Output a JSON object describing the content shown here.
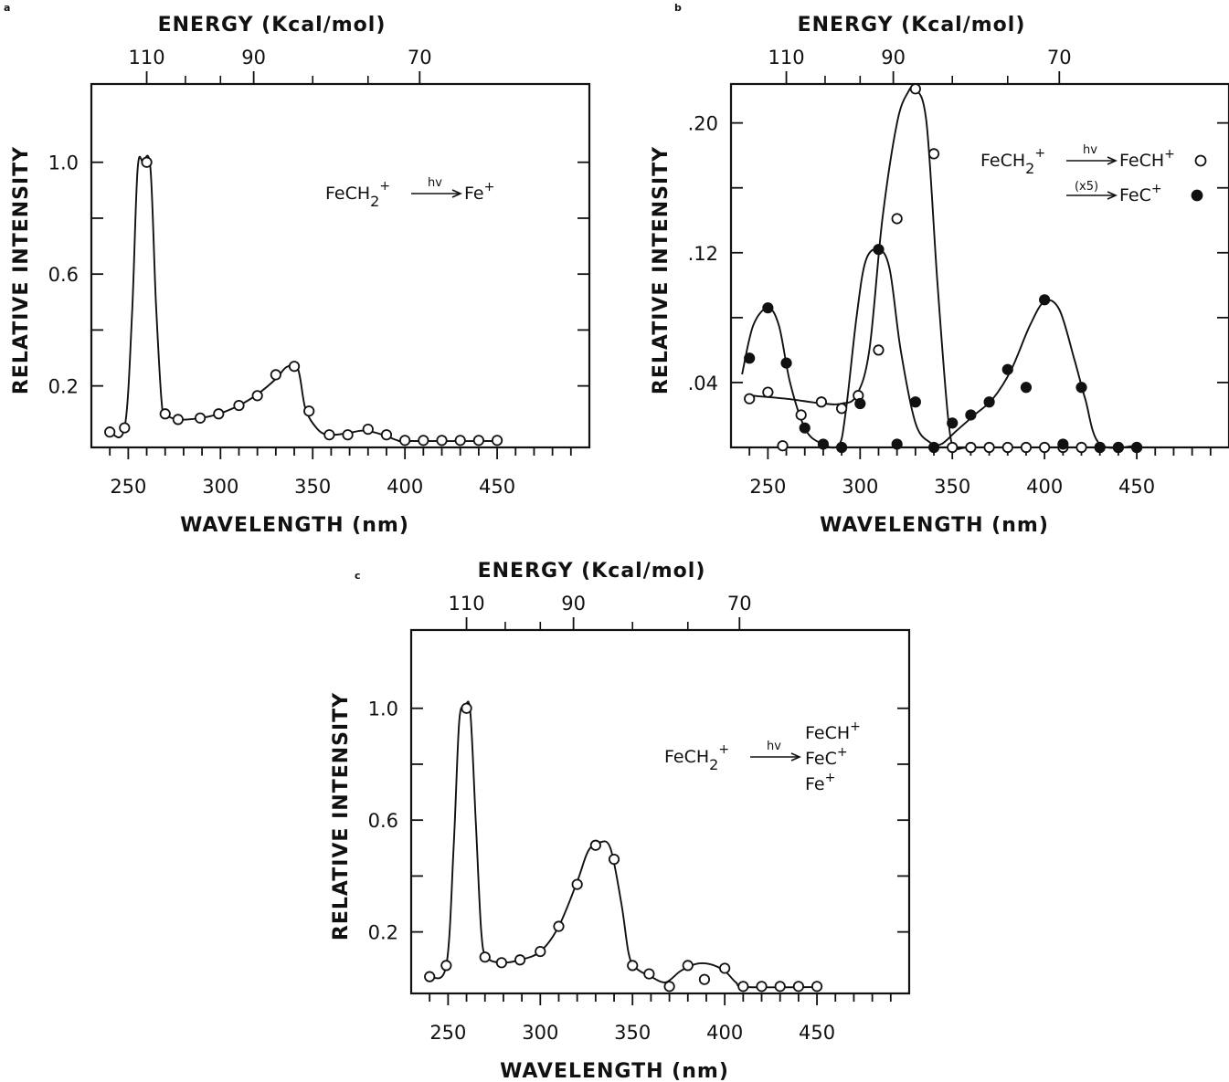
{
  "chart_data": [
    {
      "panel": "a",
      "type": "scatter",
      "top_axis_title": "ENERGY (Kcal/mol)",
      "top_tick_labels": [
        "110",
        "90",
        "70"
      ],
      "top_tick_wavelengths": [
        260,
        318,
        408
      ],
      "xlabel": "WAVELENGTH (nm)",
      "ylabel": "RELATIVE INTENSITY",
      "xlim": [
        230,
        500
      ],
      "ylim": [
        -0.02,
        1.28
      ],
      "x_tick_labels": [
        "250",
        "300",
        "350",
        "400",
        "450"
      ],
      "x_tick_values": [
        250,
        300,
        350,
        400,
        450
      ],
      "y_tick_labels": [
        "0.2",
        "0.6",
        "1.0"
      ],
      "y_tick_values": [
        0.2,
        0.6,
        1.0
      ],
      "y_minor_ticks": [
        0.4,
        0.8
      ],
      "grid": false,
      "annotation": {
        "reactant": "FeCH",
        "reactant_sub": "2",
        "reactant_sup": "+",
        "arrow_label": "hv",
        "products": [
          {
            "base": "Fe",
            "sup": "+"
          }
        ]
      },
      "series": [
        {
          "marker": "open",
          "x": [
            240,
            248,
            260,
            270,
            277,
            289,
            299,
            310,
            320,
            330,
            340,
            348,
            359,
            369,
            380,
            390,
            400,
            410,
            420,
            430,
            440,
            450
          ],
          "y": [
            0.035,
            0.05,
            1.0,
            0.1,
            0.08,
            0.085,
            0.1,
            0.13,
            0.165,
            0.24,
            0.27,
            0.11,
            0.025,
            0.025,
            0.045,
            0.025,
            0.005,
            0.005,
            0.005,
            0.005,
            0.005,
            0.005
          ]
        }
      ],
      "curves": [
        {
          "x": [
            240,
            248,
            252,
            255,
            258,
            262,
            265,
            268,
            270,
            277,
            289,
            299,
            310,
            320,
            330,
            336,
            342,
            346,
            352,
            358,
            368,
            378,
            388,
            396,
            402,
            450
          ],
          "y": [
            0.035,
            0.05,
            0.45,
            0.97,
            1.0,
            0.98,
            0.5,
            0.15,
            0.1,
            0.08,
            0.085,
            0.1,
            0.13,
            0.17,
            0.225,
            0.268,
            0.26,
            0.12,
            0.05,
            0.025,
            0.03,
            0.04,
            0.025,
            0.005,
            0.003,
            0.003
          ]
        }
      ]
    },
    {
      "panel": "b",
      "type": "scatter",
      "top_axis_title": "ENERGY (Kcal/mol)",
      "top_tick_labels": [
        "110",
        "90",
        "70"
      ],
      "top_tick_wavelengths": [
        260,
        318,
        408
      ],
      "xlabel": "WAVELENGTH (nm)",
      "ylabel": "RELATIVE INTENSITY",
      "xlim": [
        230,
        500
      ],
      "ylim": [
        0,
        0.224
      ],
      "x_tick_labels": [
        "250",
        "300",
        "350",
        "400",
        "450"
      ],
      "x_tick_values": [
        250,
        300,
        350,
        400,
        450
      ],
      "y_tick_labels": [
        ".04",
        ".12",
        ".20"
      ],
      "y_tick_values": [
        0.04,
        0.12,
        0.2
      ],
      "y_minor_ticks": [
        0.08,
        0.16
      ],
      "grid": false,
      "annotation": {
        "reactant": "FeCH",
        "reactant_sub": "2",
        "reactant_sup": "+",
        "arrow_label": "hv",
        "arrow2_label": "(x5)",
        "products": [
          {
            "base": "FeCH",
            "sup": "+",
            "marker": "open"
          },
          {
            "base": "FeC",
            "sup": "+",
            "marker": "filled"
          }
        ]
      },
      "series": [
        {
          "product": "FeCH+",
          "marker": "open",
          "x": [
            240,
            250,
            258,
            268,
            279,
            290,
            299,
            310,
            320,
            330,
            340,
            350,
            360,
            370,
            380,
            390,
            400,
            410,
            420,
            430,
            440,
            450
          ],
          "y": [
            0.03,
            0.034,
            0.001,
            0.02,
            0.028,
            0.024,
            0.032,
            0.06,
            0.141,
            0.221,
            0.181,
            0.0,
            0.0,
            0.0,
            0.0,
            0.0,
            0.0,
            0.0,
            0.0,
            0.0,
            0.0,
            0.0
          ]
        },
        {
          "product": "FeC+",
          "marker": "filled",
          "x": [
            240,
            250,
            260,
            270,
            280,
            290,
            300,
            310,
            320,
            330,
            340,
            350,
            360,
            370,
            380,
            390,
            400,
            410,
            420,
            430,
            440,
            450
          ],
          "y": [
            0.055,
            0.086,
            0.052,
            0.012,
            0.002,
            0.0,
            0.027,
            0.122,
            0.002,
            0.028,
            0.0,
            0.015,
            0.02,
            0.028,
            0.048,
            0.037,
            0.091,
            0.002,
            0.037,
            0.0,
            0.0,
            0.0
          ]
        }
      ],
      "curves": [
        {
          "x": [
            240,
            260,
            280,
            290,
            298,
            305,
            312,
            320,
            326,
            330,
            336,
            342,
            348,
            352,
            360,
            400
          ],
          "y": [
            0.032,
            0.03,
            0.027,
            0.027,
            0.032,
            0.06,
            0.14,
            0.2,
            0.219,
            0.221,
            0.2,
            0.1,
            0.015,
            0.0,
            0.0,
            0.0
          ]
        },
        {
          "x": [
            236,
            242,
            250,
            256,
            262,
            270,
            278,
            288,
            292,
            298,
            303,
            310,
            316,
            322,
            330,
            338,
            344,
            352,
            362,
            372,
            382,
            392,
            400,
            408,
            416,
            422,
            430,
            450
          ],
          "y": [
            0.045,
            0.075,
            0.086,
            0.075,
            0.04,
            0.012,
            0.003,
            0.001,
            0.02,
            0.08,
            0.115,
            0.122,
            0.11,
            0.06,
            0.015,
            0.003,
            0.002,
            0.01,
            0.02,
            0.03,
            0.048,
            0.075,
            0.09,
            0.085,
            0.055,
            0.03,
            0.002,
            0.001
          ]
        }
      ]
    },
    {
      "panel": "c",
      "type": "scatter",
      "top_axis_title": "ENERGY (Kcal/mol)",
      "top_tick_labels": [
        "110",
        "90",
        "70"
      ],
      "top_tick_wavelengths": [
        260,
        318,
        408
      ],
      "xlabel": "WAVELENGTH (nm)",
      "ylabel": "RELATIVE INTENSITY",
      "xlim": [
        230,
        500
      ],
      "ylim": [
        -0.02,
        1.28
      ],
      "x_tick_labels": [
        "250",
        "300",
        "350",
        "400",
        "450"
      ],
      "x_tick_values": [
        250,
        300,
        350,
        400,
        450
      ],
      "y_tick_labels": [
        "0.2",
        "0.6",
        "1.0"
      ],
      "y_tick_values": [
        0.2,
        0.6,
        1.0
      ],
      "y_minor_ticks": [
        0.4,
        0.8
      ],
      "grid": false,
      "annotation": {
        "reactant": "FeCH",
        "reactant_sub": "2",
        "reactant_sup": "+",
        "arrow_label": "hv",
        "products": [
          {
            "base": "FeCH",
            "sup": "+"
          },
          {
            "base": "FeC",
            "sup": "+"
          },
          {
            "base": "Fe",
            "sup": "+"
          }
        ]
      },
      "series": [
        {
          "marker": "open",
          "x": [
            240,
            249,
            260,
            270,
            279,
            289,
            300,
            310,
            320,
            330,
            340,
            350,
            359,
            370,
            380,
            389,
            400,
            410,
            420,
            430,
            440,
            450
          ],
          "y": [
            0.04,
            0.08,
            1.0,
            0.11,
            0.09,
            0.1,
            0.13,
            0.22,
            0.37,
            0.51,
            0.46,
            0.08,
            0.05,
            0.005,
            0.08,
            0.03,
            0.07,
            0.005,
            0.005,
            0.005,
            0.005,
            0.005
          ]
        }
      ],
      "curves": [
        {
          "x": [
            240,
            249,
            253,
            256,
            259,
            262,
            265,
            268,
            271,
            279,
            289,
            300,
            310,
            320,
            326,
            332,
            338,
            344,
            348,
            352,
            360,
            368,
            376,
            384,
            392,
            400,
            406,
            412,
            450
          ],
          "y": [
            0.04,
            0.08,
            0.5,
            0.95,
            1.0,
            0.99,
            0.6,
            0.2,
            0.11,
            0.09,
            0.1,
            0.13,
            0.22,
            0.38,
            0.49,
            0.52,
            0.5,
            0.3,
            0.12,
            0.07,
            0.04,
            0.02,
            0.06,
            0.085,
            0.085,
            0.06,
            0.02,
            0.003,
            0.003
          ]
        }
      ]
    }
  ]
}
